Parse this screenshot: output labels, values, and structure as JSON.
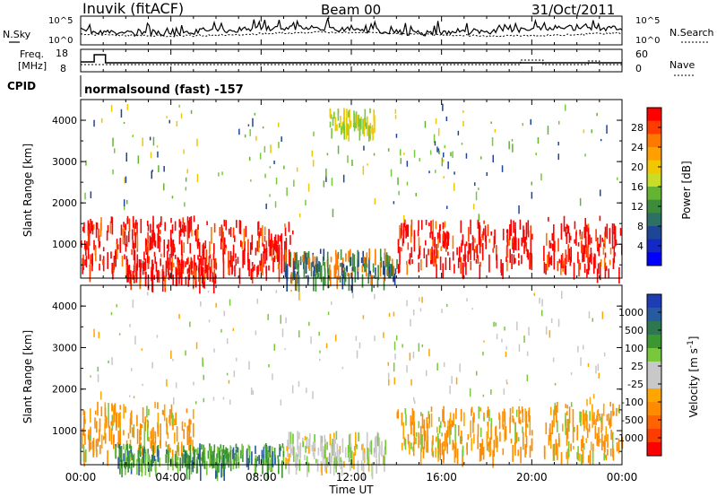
{
  "header": {
    "station": "Inuvik (fitACF)",
    "beam": "Beam 00",
    "date": "31/Oct/2011"
  },
  "noise_panel": {
    "left_label": "N.Sky",
    "right_label": "N.Search",
    "tick_top": "10^5",
    "tick_bottom": "10^0",
    "tick_top_right": "10^5",
    "tick_bottom_right": "10^0"
  },
  "freq_panel": {
    "left_label_1": "Freq.",
    "left_label_2": "[MHz]",
    "right_label": "Nave",
    "left_ticks": [
      "18",
      "8"
    ],
    "right_ticks": [
      "60",
      "0"
    ]
  },
  "cpid_panel": {
    "label": "CPID",
    "mode": "normalsound (fast) -157"
  },
  "power_panel": {
    "ylabel": "Slant Range [km]",
    "yticks": [
      "4000",
      "3000",
      "2000",
      "1000"
    ],
    "colorbar_label": "Power [dB]",
    "colorbar_ticks": [
      "28",
      "24",
      "20",
      "16",
      "12",
      "8",
      "4"
    ],
    "colorbar_colors": [
      "#ff0000",
      "#ff3c00",
      "#ff7800",
      "#ffa000",
      "#f0c800",
      "#c8dc28",
      "#64b432",
      "#3c8c3c",
      "#2d7064",
      "#1e4696",
      "#1428c8",
      "#0000ff"
    ]
  },
  "velocity_panel": {
    "ylabel": "Slant Range [km]",
    "yticks": [
      "4000",
      "3000",
      "2000",
      "1000"
    ],
    "colorbar_label": "Velocity [m s^-1]",
    "colorbar_ticks": [
      "1000",
      "500",
      "100",
      "25",
      "-25",
      "-100",
      "-500",
      "-1000"
    ],
    "colorbar_colors": [
      "#1e3cb4",
      "#285aa0",
      "#2d7850",
      "#3c9632",
      "#78c83c",
      "#c8c8c8",
      "#c8c8c8",
      "#ffa500",
      "#ff8c00",
      "#ff6400",
      "#ff3c00",
      "#ff0000"
    ]
  },
  "xaxis": {
    "label": "Time UT",
    "ticks": [
      "00:00",
      "04:00",
      "08:00",
      "12:00",
      "16:00",
      "20:00",
      "00:00"
    ]
  },
  "chart_data": {
    "type": "heatmap",
    "x_range_hours": [
      0,
      24
    ],
    "y_range_km": [
      180,
      4500
    ],
    "power_colorscale": [
      4,
      8,
      12,
      16,
      20,
      24,
      28
    ],
    "velocity_colorscale": [
      -1000,
      -500,
      -100,
      -25,
      25,
      100,
      500,
      1000
    ],
    "scatter_regions_power": [
      {
        "t0": 0.0,
        "t1": 5.0,
        "r0": 500,
        "r1": 1700,
        "value": 28
      },
      {
        "t0": 2.0,
        "t1": 6.0,
        "r0": 200,
        "r1": 700,
        "value": 28
      },
      {
        "t0": 5.0,
        "t1": 9.5,
        "r0": 400,
        "r1": 1600,
        "value": 28
      },
      {
        "t0": 9.0,
        "t1": 14.0,
        "r0": 200,
        "r1": 900,
        "value": 12
      },
      {
        "t0": 11.0,
        "t1": 13.0,
        "r0": 3800,
        "r1": 4300,
        "value": 20
      },
      {
        "t0": 14.0,
        "t1": 20.0,
        "r0": 500,
        "r1": 1600,
        "value": 28
      },
      {
        "t0": 20.5,
        "t1": 24.0,
        "r0": 400,
        "r1": 1700,
        "value": 28
      }
    ],
    "scatter_regions_velocity": [
      {
        "t0": 0.0,
        "t1": 5.0,
        "r0": 500,
        "r1": 1700,
        "value": -100
      },
      {
        "t0": 1.5,
        "t1": 9.0,
        "r0": 200,
        "r1": 700,
        "value": 100
      },
      {
        "t0": 9.0,
        "t1": 13.5,
        "r0": 200,
        "r1": 1000,
        "value": 0
      },
      {
        "t0": 14.0,
        "t1": 20.0,
        "r0": 500,
        "r1": 1600,
        "value": -100
      },
      {
        "t0": 20.5,
        "t1": 24.0,
        "r0": 400,
        "r1": 1700,
        "value": -100
      }
    ]
  }
}
